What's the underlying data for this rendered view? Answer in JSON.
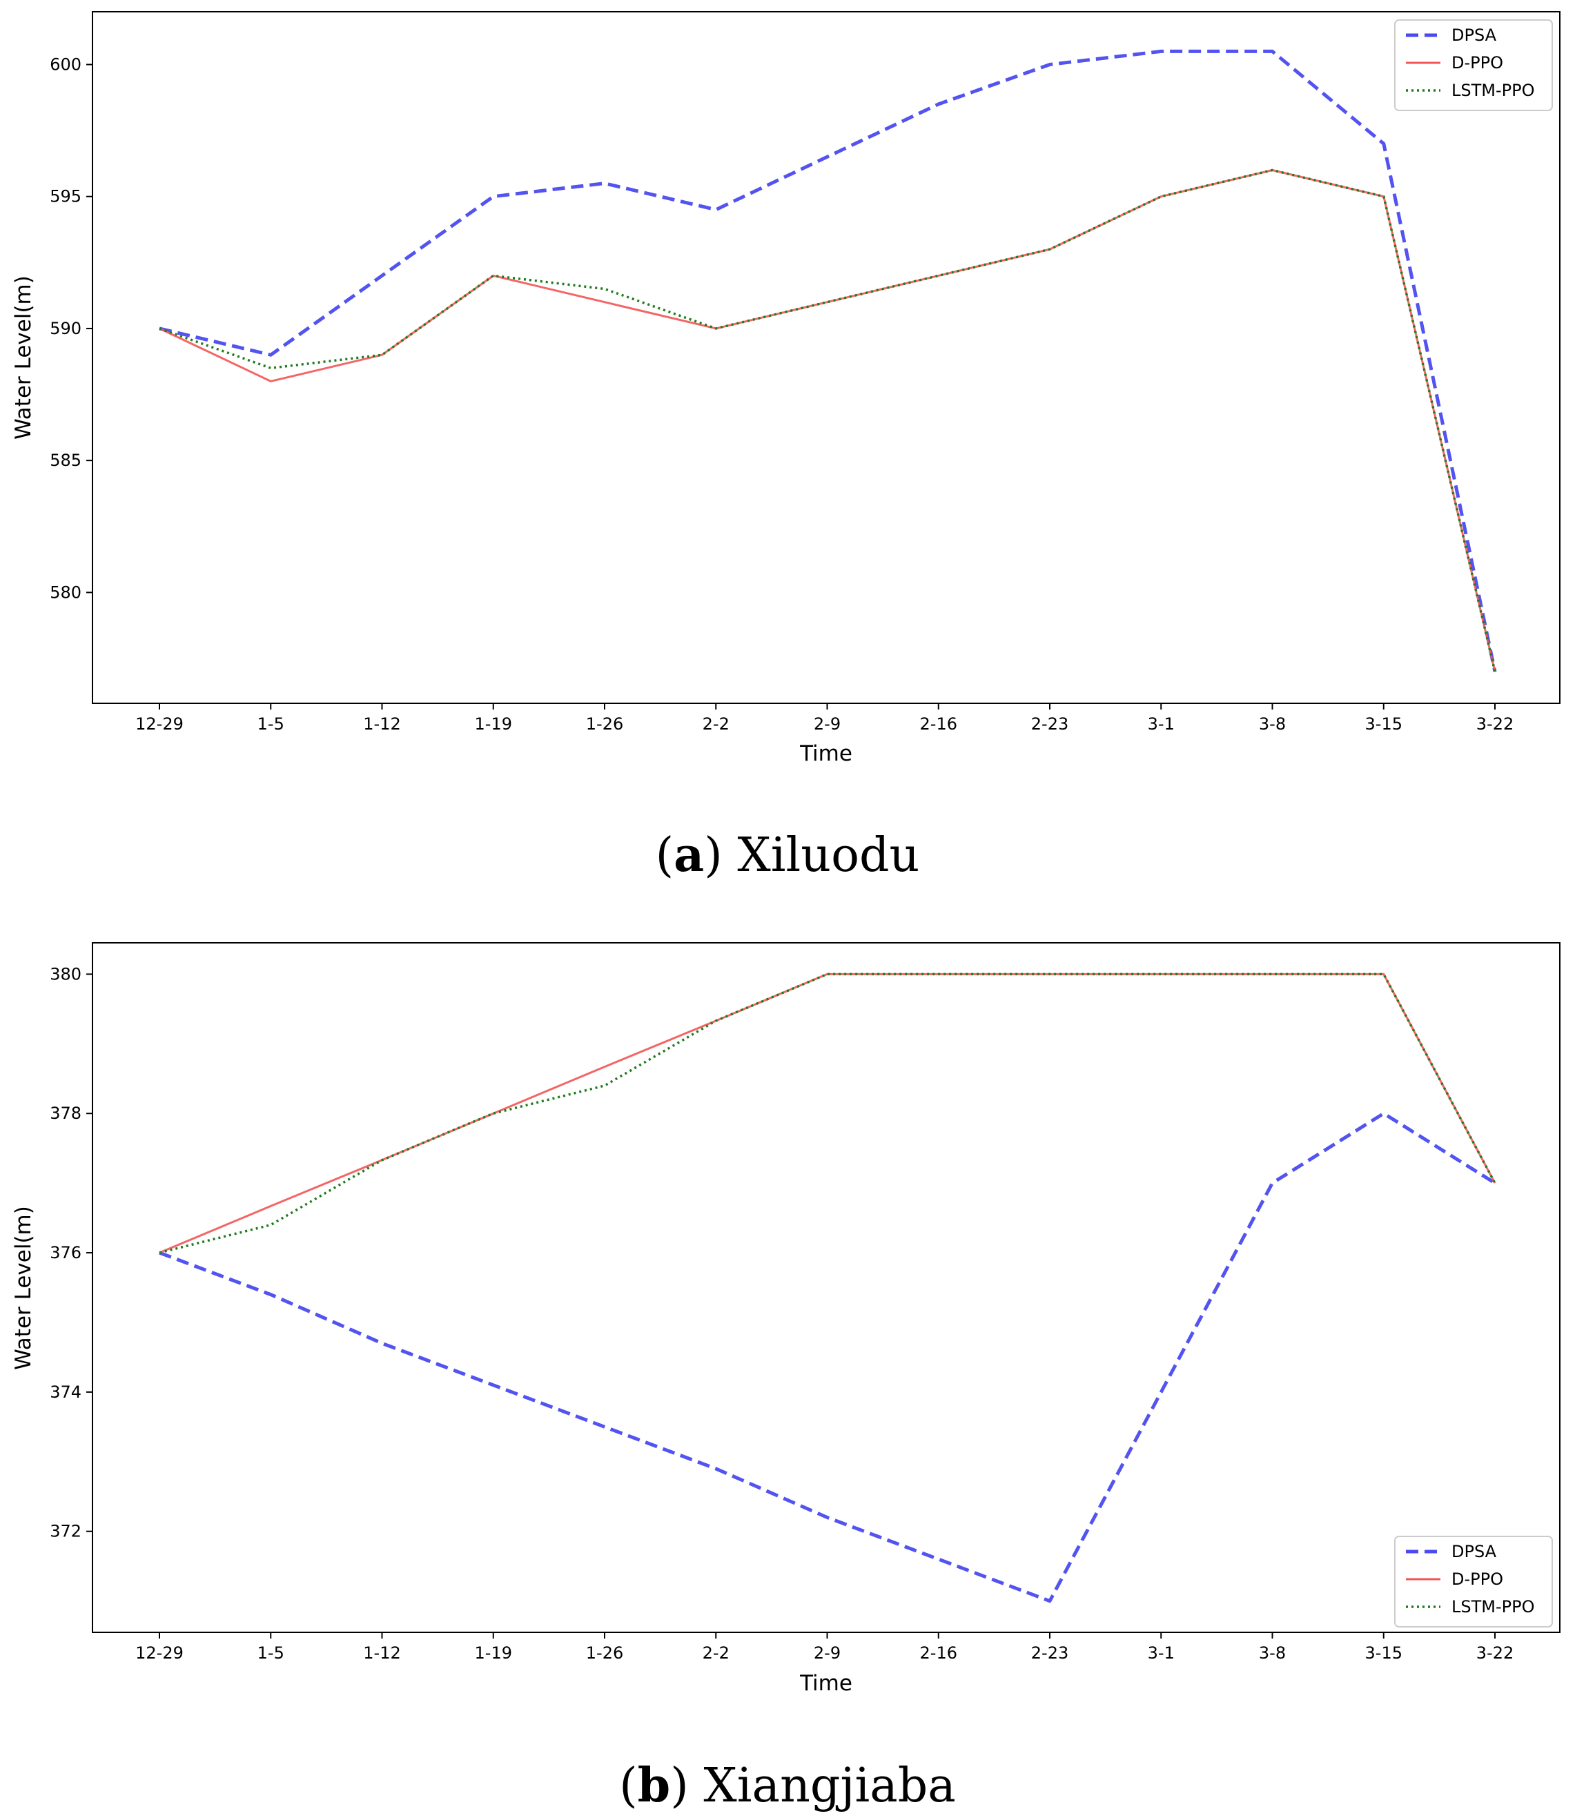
{
  "chart_data": [
    {
      "type": "line",
      "caption_letter": "a",
      "caption_title": "Xiluodu",
      "xlabel": "Time",
      "ylabel": "Water Level(m)",
      "categories": [
        "12-29",
        "1-5",
        "1-12",
        "1-19",
        "1-26",
        "2-2",
        "2-9",
        "2-16",
        "2-23",
        "3-1",
        "3-8",
        "3-15",
        "3-22"
      ],
      "ylim": [
        575.8,
        602.0
      ],
      "yticks": [
        "580",
        "585",
        "590",
        "595",
        "600"
      ],
      "legend_position": "top-right",
      "series": [
        {
          "name": "DPSA",
          "color": "#4a4af0",
          "style": "dashed",
          "values": [
            590,
            589,
            592,
            595,
            595.5,
            594.5,
            596.5,
            598.5,
            600,
            600.5,
            600.5,
            597,
            577
          ]
        },
        {
          "name": "D-PPO",
          "color": "#f25555",
          "style": "solid",
          "values": [
            590,
            588,
            589,
            592,
            591,
            590,
            591,
            592,
            593,
            595,
            596,
            595,
            577
          ]
        },
        {
          "name": "LSTM-PPO",
          "color": "#1e7b1e",
          "style": "dotted",
          "values": [
            590,
            588.5,
            589,
            592,
            591.5,
            590,
            591,
            592,
            593,
            595,
            596,
            595,
            577
          ]
        }
      ]
    },
    {
      "type": "line",
      "caption_letter": "b",
      "caption_title": "Xiangjiaba",
      "xlabel": "Time",
      "ylabel": "Water Level(m)",
      "categories": [
        "12-29",
        "1-5",
        "1-12",
        "1-19",
        "1-26",
        "2-2",
        "2-9",
        "2-16",
        "2-23",
        "3-1",
        "3-8",
        "3-15",
        "3-22"
      ],
      "ylim": [
        370.55,
        380.45
      ],
      "yticks": [
        "372",
        "374",
        "376",
        "378",
        "380"
      ],
      "legend_position": "bottom-right",
      "series": [
        {
          "name": "DPSA",
          "color": "#4a4af0",
          "style": "dashed",
          "values": [
            376,
            375.4,
            374.7,
            374.1,
            373.5,
            372.9,
            372.2,
            371.6,
            371,
            374,
            377,
            378,
            377
          ]
        },
        {
          "name": "D-PPO",
          "color": "#f25555",
          "style": "solid",
          "values": [
            376,
            376.67,
            377.33,
            378,
            378.67,
            379.33,
            380,
            380,
            380,
            380,
            380,
            380,
            377
          ]
        },
        {
          "name": "LSTM-PPO",
          "color": "#1e7b1e",
          "style": "dotted",
          "values": [
            376,
            376.4,
            377.33,
            378,
            378.4,
            379.33,
            380,
            380,
            380,
            380,
            380,
            380,
            377
          ]
        }
      ]
    }
  ]
}
